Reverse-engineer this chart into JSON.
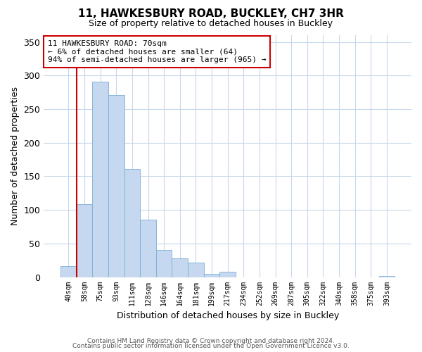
{
  "title": "11, HAWKESBURY ROAD, BUCKLEY, CH7 3HR",
  "subtitle": "Size of property relative to detached houses in Buckley",
  "xlabel": "Distribution of detached houses by size in Buckley",
  "ylabel": "Number of detached properties",
  "bar_labels": [
    "40sqm",
    "58sqm",
    "75sqm",
    "93sqm",
    "111sqm",
    "128sqm",
    "146sqm",
    "164sqm",
    "181sqm",
    "199sqm",
    "217sqm",
    "234sqm",
    "252sqm",
    "269sqm",
    "287sqm",
    "305sqm",
    "322sqm",
    "340sqm",
    "358sqm",
    "375sqm",
    "393sqm"
  ],
  "bar_values": [
    16,
    109,
    291,
    271,
    161,
    85,
    40,
    28,
    22,
    5,
    8,
    0,
    0,
    0,
    0,
    0,
    0,
    0,
    0,
    0,
    2
  ],
  "bar_color": "#c5d8f0",
  "bar_edge_color": "#7dadd4",
  "highlight_line_color": "#cc0000",
  "highlight_bar_index": 1,
  "ylim": [
    0,
    360
  ],
  "yticks": [
    0,
    50,
    100,
    150,
    200,
    250,
    300,
    350
  ],
  "annotation_text": "11 HAWKESBURY ROAD: 70sqm\n← 6% of detached houses are smaller (64)\n94% of semi-detached houses are larger (965) →",
  "annotation_box_color": "#ffffff",
  "annotation_box_edge": "#cc0000",
  "grid_color": "#c8d8ea",
  "footnote1": "Contains HM Land Registry data © Crown copyright and database right 2024.",
  "footnote2": "Contains public sector information licensed under the Open Government Licence v3.0.",
  "figsize": [
    6.0,
    5.0
  ],
  "dpi": 100
}
